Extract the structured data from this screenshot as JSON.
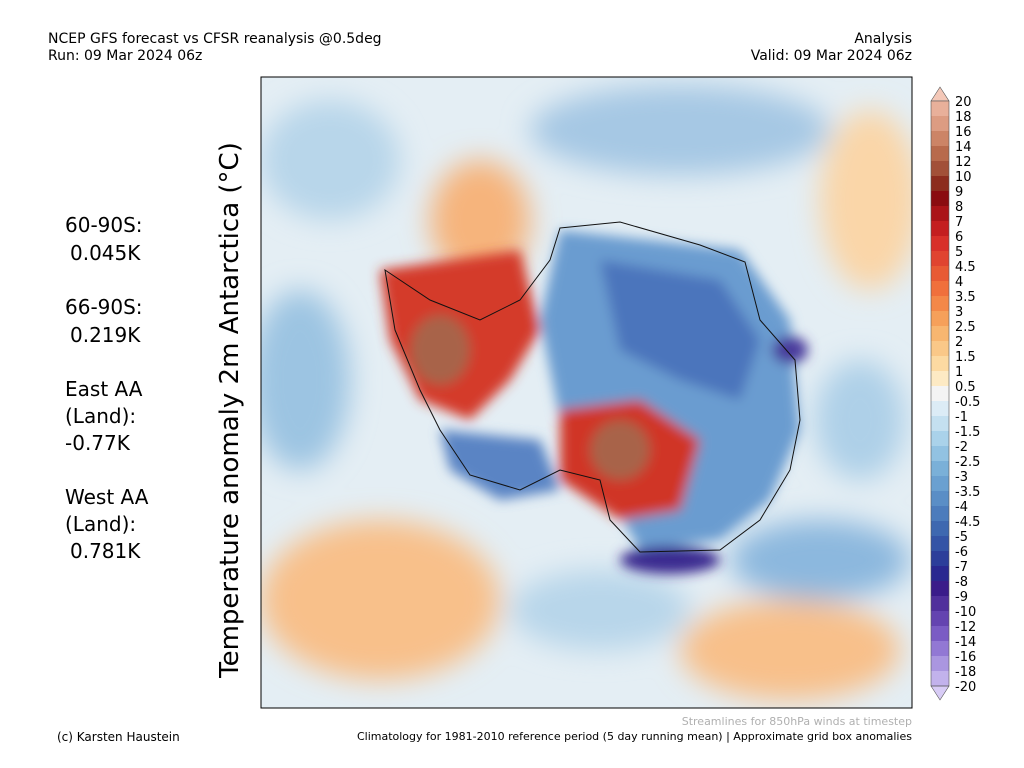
{
  "header": {
    "title": "NCEP GFS forecast vs CFSR reanalysis @0.5deg",
    "run": "Run: 09 Mar 2024 06z",
    "kind": "Analysis",
    "valid": "Valid: 09 Mar 2024 06z"
  },
  "axis_label": "Temperature anomaly 2m Antarctica (°C)",
  "stats": [
    "60-90S:",
    "0.045K",
    "66-90S:",
    "0.219K",
    "East AA",
    "(Land):",
    "-0.77K",
    "West AA",
    "(Land):",
    "0.781K"
  ],
  "colorbar": {
    "labels": [
      20,
      18,
      16,
      14,
      12,
      10,
      9,
      8,
      7,
      6,
      5,
      4.5,
      4,
      3.5,
      3,
      2.5,
      2,
      1.5,
      1,
      0.5,
      -0.5,
      -1,
      -1.5,
      -2,
      -2.5,
      -3,
      -3.5,
      -4,
      -4.5,
      -5,
      -6,
      -7,
      -8,
      -9,
      -10,
      -12,
      -14,
      -16,
      -18,
      -20
    ],
    "colors": [
      "#f4c8b8",
      "#e8b09a",
      "#dc9c82",
      "#cc8466",
      "#b86a4c",
      "#a25038",
      "#8c2c1e",
      "#8a0c10",
      "#aa1418",
      "#c41e20",
      "#d8302a",
      "#e04430",
      "#e85a34",
      "#f0703c",
      "#f48848",
      "#f6a05a",
      "#f8b670",
      "#fac888",
      "#fcdaa2",
      "#fdeac4",
      "#f4f4f4",
      "#dcecf6",
      "#c4e0f0",
      "#aad2ea",
      "#92c2e2",
      "#7ab0d8",
      "#6aa0d0",
      "#5a8ec6",
      "#4c7cbc",
      "#3e68b0",
      "#3454a6",
      "#2c3e9a",
      "#2a2890",
      "#3a1c8a",
      "#50309c",
      "#6444b0",
      "#7a5cc4",
      "#9278d4",
      "#aa96e0",
      "#c2b2ec",
      "#d8ccf6"
    ]
  },
  "footer": {
    "streamlines": "Streamlines for 850hPa winds at timestep",
    "credit": "(c) Karsten Haustein",
    "climatology": "Climatology for 1981-2010 reference period (5 day running mean) | Approximate grid box anomalies"
  }
}
